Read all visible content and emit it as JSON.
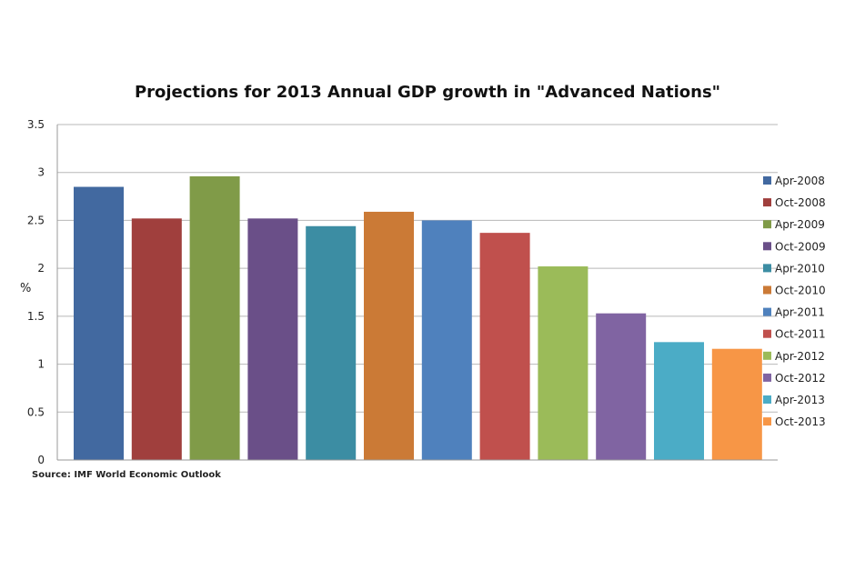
{
  "chart_data": {
    "type": "bar",
    "title": "Projections for 2013 Annual GDP growth in \"Advanced Nations\"",
    "xlabel": "",
    "ylabel": "%",
    "ylim": [
      0,
      3.5
    ],
    "yticks": [
      "0",
      "0.5",
      "1",
      "1.5",
      "2",
      "2.5",
      "3",
      "3.5"
    ],
    "grid": true,
    "legend": "right",
    "source": "Source: IMF World Economic Outlook",
    "series": [
      {
        "name": "Apr-2008",
        "value": 2.85,
        "color": "#4269A0"
      },
      {
        "name": "Oct-2008",
        "value": 2.52,
        "color": "#A03F3D"
      },
      {
        "name": "Apr-2009",
        "value": 2.96,
        "color": "#809B48"
      },
      {
        "name": "Oct-2009",
        "value": 2.52,
        "color": "#6A4F88"
      },
      {
        "name": "Apr-2010",
        "value": 2.44,
        "color": "#3C8DA3"
      },
      {
        "name": "Oct-2010",
        "value": 2.59,
        "color": "#CB7A36"
      },
      {
        "name": "Apr-2011",
        "value": 2.5,
        "color": "#4F81BD"
      },
      {
        "name": "Oct-2011",
        "value": 2.37,
        "color": "#C0504D"
      },
      {
        "name": "Apr-2012",
        "value": 2.02,
        "color": "#9BBB59"
      },
      {
        "name": "Oct-2012",
        "value": 1.53,
        "color": "#8064A2"
      },
      {
        "name": "Apr-2013",
        "value": 1.23,
        "color": "#4BACC6"
      },
      {
        "name": "Oct-2013",
        "value": 1.16,
        "color": "#F79646"
      }
    ]
  }
}
